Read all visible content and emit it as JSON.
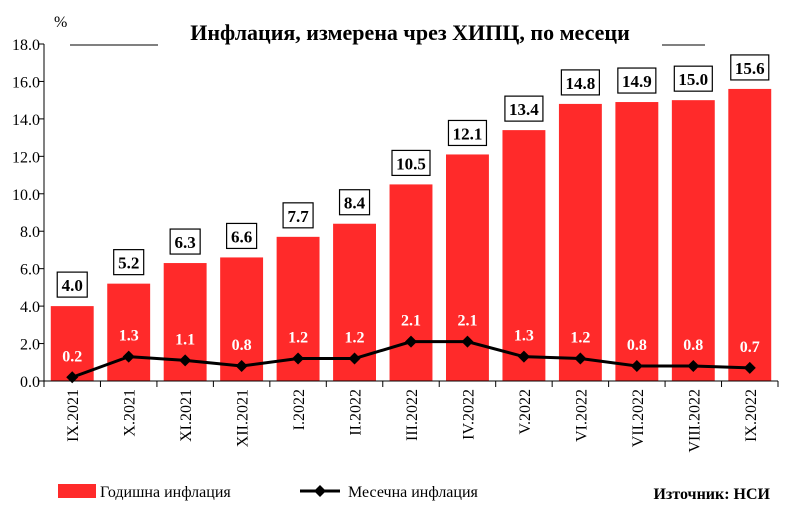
{
  "chart_data": {
    "type": "bar",
    "title": "Инфлация, измерена чрез ХИПЦ, по месеци",
    "ylabel": "%",
    "ylim": [
      0,
      18
    ],
    "yticks": [
      "0.0",
      "2.0",
      "4.0",
      "6.0",
      "8.0",
      "10.0",
      "12.0",
      "14.0",
      "16.0",
      "18.0"
    ],
    "categories": [
      "IX.2021",
      "X.2021",
      "XI.2021",
      "XII.2021",
      "I.2022",
      "II.2022",
      "III.2022",
      "IV.2022",
      "V.2022",
      "VI.2022",
      "VII.2022",
      "VIII.2022",
      "IX.2022"
    ],
    "series": [
      {
        "name": "Годишна инфлация",
        "type": "bar",
        "color": "#ff2a2a",
        "values": [
          4.0,
          5.2,
          6.3,
          6.6,
          7.7,
          8.4,
          10.5,
          12.1,
          13.4,
          14.8,
          14.9,
          15.0,
          15.6
        ],
        "labels": [
          "4.0",
          "5.2",
          "6.3",
          "6.6",
          "7.7",
          "8.4",
          "10.5",
          "12.1",
          "13.4",
          "14.8",
          "14.9",
          "15.0",
          "15.6"
        ]
      },
      {
        "name": "Месечна инфлация",
        "type": "line",
        "color": "#000000",
        "values": [
          0.2,
          1.3,
          1.1,
          0.8,
          1.2,
          1.2,
          2.1,
          2.1,
          1.3,
          1.2,
          0.8,
          0.8,
          0.7
        ],
        "labels": [
          "0.2",
          "1.3",
          "1.1",
          "0.8",
          "1.2",
          "1.2",
          "2.1",
          "2.1",
          "1.3",
          "1.2",
          "0.8",
          "0.8",
          "0.7"
        ]
      }
    ],
    "grid": false,
    "legend": "bottom-left"
  },
  "source": "Източник: НСИ"
}
